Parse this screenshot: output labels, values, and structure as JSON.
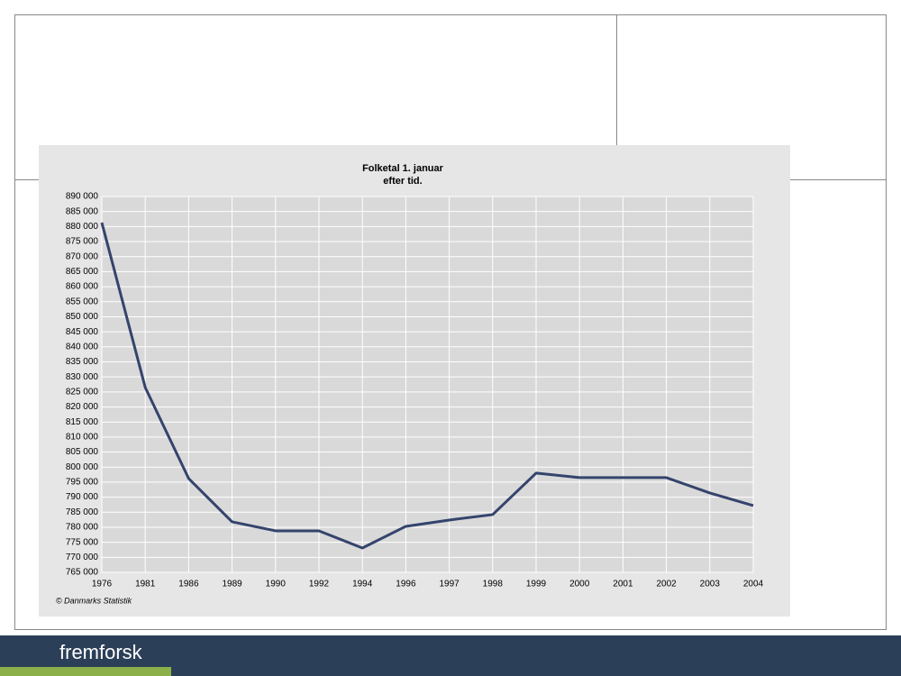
{
  "chart_data": {
    "type": "line",
    "title": "Folketal 1. januar",
    "subtitle": "efter tid.",
    "categories": [
      "1976",
      "1981",
      "1986",
      "1989",
      "1990",
      "1992",
      "1994",
      "1996",
      "1997",
      "1998",
      "1999",
      "2000",
      "2001",
      "2002",
      "2003",
      "2004"
    ],
    "series": [
      {
        "name": "Folketal",
        "color": "#34446c",
        "values": [
          881300,
          826500,
          796200,
          781800,
          778800,
          778800,
          773100,
          780300,
          782400,
          784200,
          798000,
          796500,
          796500,
          796500,
          791400,
          787200
        ]
      }
    ],
    "ylim": [
      765000,
      890000
    ],
    "yticks": [
      {
        "value": 765000,
        "label": "765 000"
      },
      {
        "value": 770000,
        "label": "770 000"
      },
      {
        "value": 775000,
        "label": "775 000"
      },
      {
        "value": 780000,
        "label": "780 000"
      },
      {
        "value": 785000,
        "label": "785 000"
      },
      {
        "value": 790000,
        "label": "790 000"
      },
      {
        "value": 795000,
        "label": "795 000"
      },
      {
        "value": 800000,
        "label": "800 000"
      },
      {
        "value": 805000,
        "label": "805 000"
      },
      {
        "value": 810000,
        "label": "810 000"
      },
      {
        "value": 815000,
        "label": "815 000"
      },
      {
        "value": 820000,
        "label": "820 000"
      },
      {
        "value": 825000,
        "label": "825 000"
      },
      {
        "value": 830000,
        "label": "830 000"
      },
      {
        "value": 835000,
        "label": "835 000"
      },
      {
        "value": 840000,
        "label": "840 000"
      },
      {
        "value": 845000,
        "label": "845 000"
      },
      {
        "value": 850000,
        "label": "850 000"
      },
      {
        "value": 855000,
        "label": "855 000"
      },
      {
        "value": 860000,
        "label": "860 000"
      },
      {
        "value": 865000,
        "label": "865 000"
      },
      {
        "value": 870000,
        "label": "870 000"
      },
      {
        "value": 875000,
        "label": "875 000"
      },
      {
        "value": 880000,
        "label": "880 000"
      },
      {
        "value": 885000,
        "label": "885 000"
      },
      {
        "value": 890000,
        "label": "890 000"
      }
    ],
    "grid": true,
    "source": "© Danmarks Statistik"
  },
  "footer": {
    "brand": "fremforsk"
  }
}
